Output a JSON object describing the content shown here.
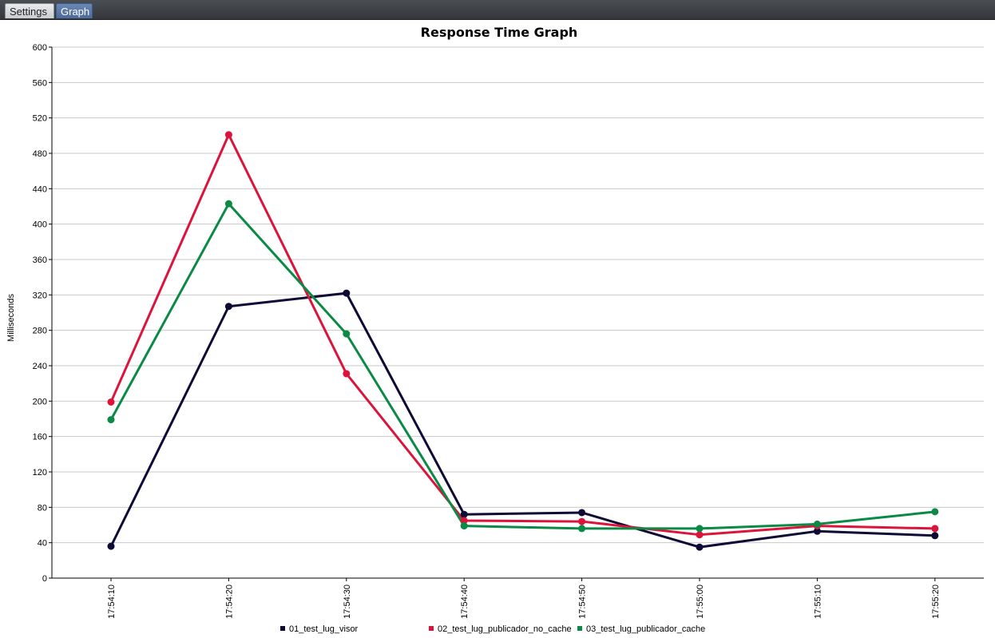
{
  "tabs": [
    {
      "label": "Settings",
      "active": false
    },
    {
      "label": "Graph",
      "active": true
    }
  ],
  "chart_data": {
    "type": "line",
    "title": "Response Time Graph",
    "xlabel": "",
    "ylabel": "Milliseconds",
    "ylim": [
      0,
      600
    ],
    "yticks": [
      0,
      40,
      80,
      120,
      160,
      200,
      240,
      280,
      320,
      360,
      400,
      440,
      480,
      520,
      560,
      600
    ],
    "grid": true,
    "legend_position": "bottom",
    "categories": [
      "17:54:10",
      "17:54:20",
      "17:54:30",
      "17:54:40",
      "17:54:50",
      "17:55:00",
      "17:55:10",
      "17:55:20"
    ],
    "series": [
      {
        "name": "01_test_lug_visor",
        "color": "#0d0a35",
        "values": [
          36,
          307,
          322,
          72,
          74,
          35,
          53,
          48
        ]
      },
      {
        "name": "02_test_lug_publicador_no_cache",
        "color": "#dc143c",
        "values": [
          199,
          501,
          231,
          65,
          64,
          49,
          59,
          56
        ]
      },
      {
        "name": "03_test_lug_publicador_cache",
        "color": "#0a8a45",
        "values": [
          179,
          423,
          276,
          59,
          56,
          56,
          61,
          75
        ]
      }
    ]
  }
}
